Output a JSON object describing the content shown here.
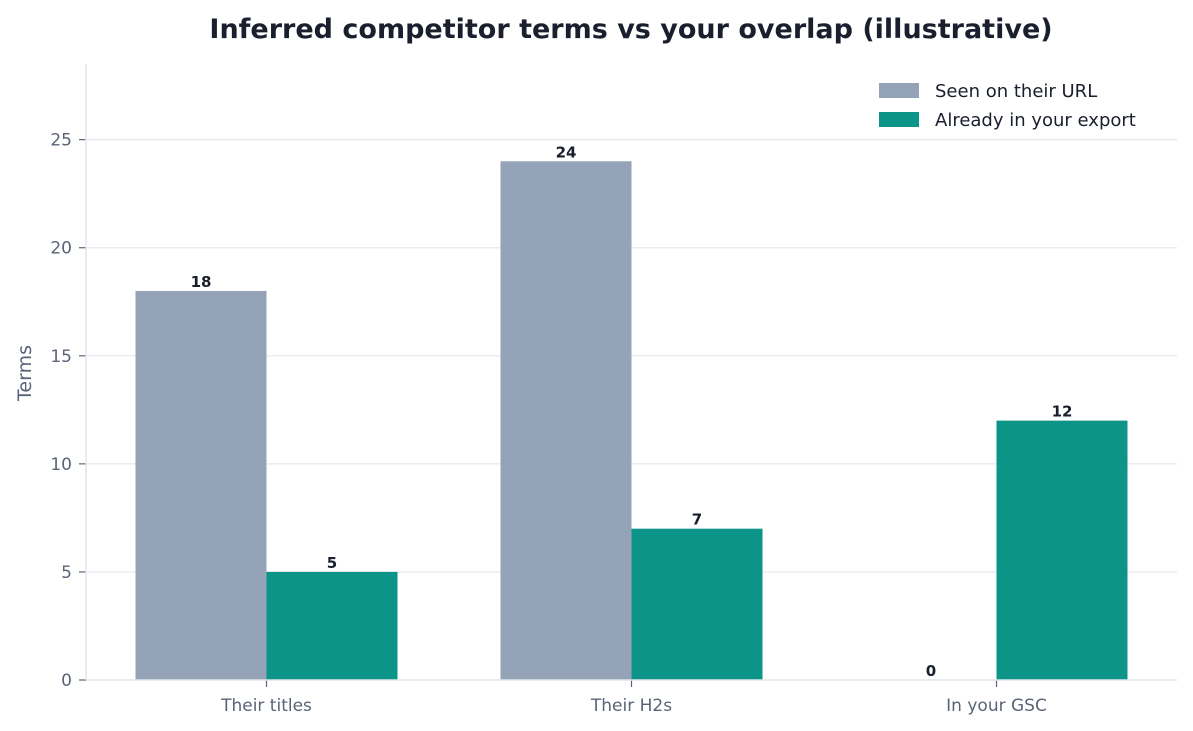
{
  "chart_data": {
    "type": "bar",
    "title": "Inferred competitor terms vs your overlap (illustrative)",
    "xlabel": "",
    "ylabel": "Terms",
    "categories": [
      "Their titles",
      "Their H2s",
      "In your GSC"
    ],
    "series": [
      {
        "name": "Seen on their URL",
        "values": [
          18,
          24,
          0
        ],
        "color": "#94a3b8"
      },
      {
        "name": "Already in your export",
        "values": [
          5,
          7,
          12
        ],
        "color": "#0d9488"
      }
    ],
    "ylim": [
      0,
      28.5
    ],
    "yticks": [
      0,
      5,
      10,
      15,
      20,
      25
    ],
    "grid": "horizontal",
    "legend_position": "top-right",
    "colors": {
      "grid": "#e5e7eb",
      "axis": "#e2e5ea",
      "text": "#1a1f2e",
      "muted": "#5a6478"
    }
  }
}
